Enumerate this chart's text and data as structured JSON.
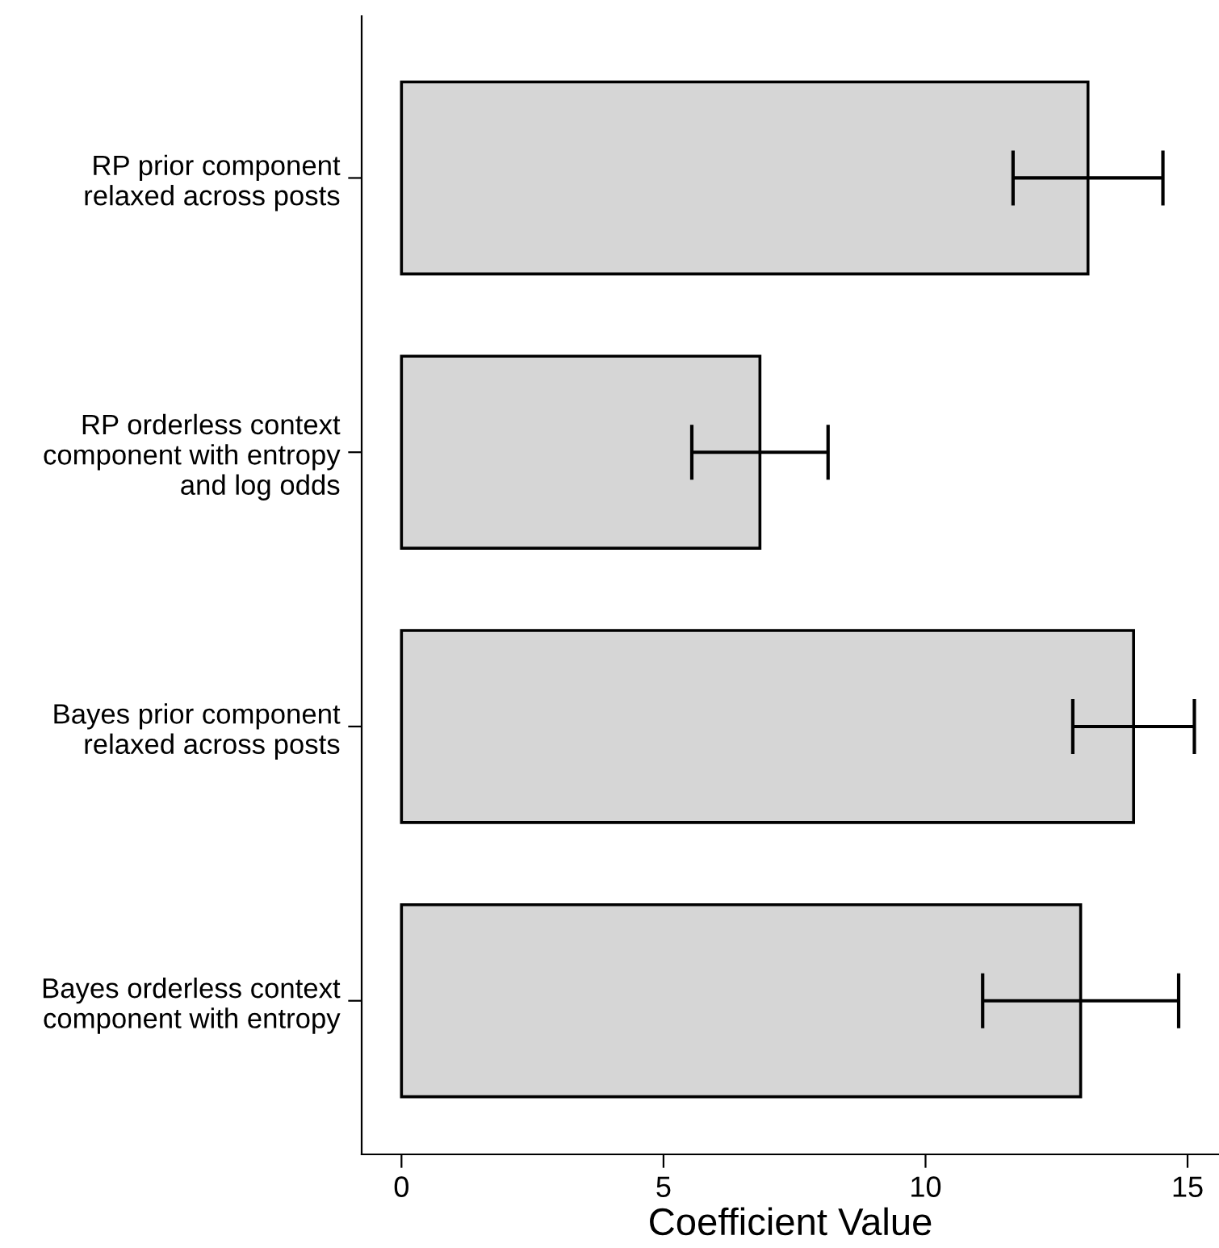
{
  "chart_data": {
    "type": "bar",
    "orientation": "horizontal",
    "xlabel": "Coefficient Value",
    "categories": [
      "RP prior component\nrelaxed across posts",
      "RP orderless context\ncomponent with entropy\nand log odds",
      "Bayes prior component\nrelaxed across posts",
      "Bayes orderless context\ncomponent with entropy"
    ],
    "values": [
      13.1,
      6.84,
      13.97,
      12.96
    ],
    "errors": [
      1.43,
      1.3,
      1.16,
      1.87
    ],
    "color": "#d6d6d6",
    "xlim": [
      -0.76,
      15.6
    ],
    "xticks": [
      0,
      5,
      10,
      15
    ],
    "grid": false,
    "legend": false
  }
}
